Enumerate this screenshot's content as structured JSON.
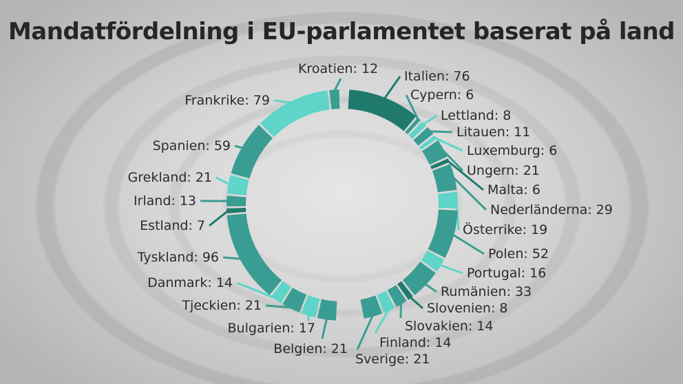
{
  "chart_data": {
    "type": "pie",
    "variant": "donut",
    "title": "Mandatfördelning i EU-parlamentet baserat på land",
    "categories": [
      "Italien",
      "Cypern",
      "Lettland",
      "Litauen",
      "Luxemburg",
      "Ungern",
      "Malta",
      "Nederländerna",
      "Österrike",
      "Polen",
      "Portugal",
      "Rumänien",
      "Slovenien",
      "Slovakien",
      "Finland",
      "Sverige",
      "Belgien",
      "Bulgarien",
      "Tjeckien",
      "Danmark",
      "Tyskland",
      "Estland",
      "Irland",
      "Grekland",
      "Spanien",
      "Frankrike",
      "Kroatien"
    ],
    "values": [
      76,
      6,
      8,
      11,
      6,
      21,
      6,
      29,
      19,
      52,
      16,
      33,
      8,
      14,
      14,
      21,
      21,
      17,
      21,
      14,
      96,
      7,
      13,
      21,
      59,
      79,
      12
    ],
    "labels": [
      "Italien: 76",
      "Cypern: 6",
      "Lettland: 8",
      "Litauen: 11",
      "Luxemburg: 6",
      "Ungern: 21",
      "Malta: 6",
      "Nederländerna: 29",
      "Österrike: 19",
      "Polen: 52",
      "Portugal: 16",
      "Rumänien: 33",
      "Slovenien: 8",
      "Slovakien: 14",
      "Finland: 14",
      "Sverige: 21",
      "Belgien: 21",
      "Bulgarien: 17",
      "Tjeckien: 21",
      "Danmark: 14",
      "Tyskland: 96",
      "Estland: 7",
      "Irland: 13",
      "Grekland: 21",
      "Spanien: 59",
      "Frankrike: 79",
      "Kroatien: 12"
    ],
    "shade": [
      "dark",
      "mid",
      "light",
      "mid",
      "light",
      "mid",
      "dark",
      "mid",
      "light",
      "mid",
      "light",
      "mid",
      "dark",
      "mid",
      "light",
      "mid",
      "mid",
      "light",
      "mid",
      "light",
      "mid",
      "dark",
      "mid",
      "light",
      "mid",
      "light",
      "mid"
    ],
    "colors": {
      "dark": "#1f7a6c",
      "mid": "#3a9d93",
      "light": "#5ed5c8"
    },
    "legend": "none"
  }
}
